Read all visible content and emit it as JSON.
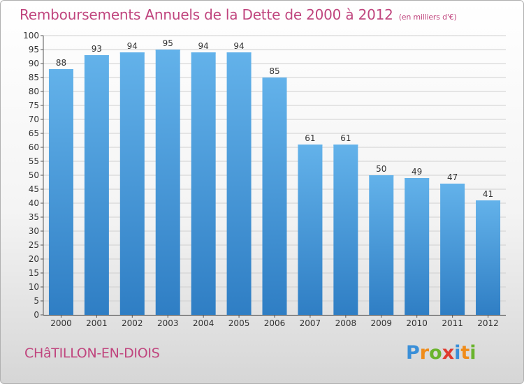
{
  "header": {
    "title": "Remboursements Annuels de la Dette de 2000 à 2012",
    "unit": "(en milliers d'€)"
  },
  "footer": {
    "commune": "CHâTILLON-EN-DIOIS",
    "logo_letters": [
      "P",
      "r",
      "o",
      "x",
      "i",
      "t",
      "i"
    ],
    "logo_colors": [
      "#3a8fd8",
      "#f08c1a",
      "#6ab42d",
      "#e03a2e",
      "#3a8fd8",
      "#f08c1a",
      "#6ab42d"
    ]
  },
  "colors": {
    "bar": "#3d8fd6",
    "bar_light": "#63b2ea",
    "bar_dark": "#2f7ec4",
    "title": "#c0457e"
  },
  "chart_data": {
    "type": "bar",
    "title": "Remboursements Annuels de la Dette de 2000 à 2012",
    "xlabel": "",
    "ylabel": "",
    "categories": [
      "2000",
      "2001",
      "2002",
      "2003",
      "2004",
      "2005",
      "2006",
      "2007",
      "2008",
      "2009",
      "2010",
      "2011",
      "2012"
    ],
    "values": [
      88,
      93,
      94,
      95,
      94,
      94,
      85,
      61,
      61,
      50,
      49,
      47,
      41
    ],
    "ylim": [
      0,
      100
    ],
    "ytick_step": 5,
    "grid": true
  }
}
